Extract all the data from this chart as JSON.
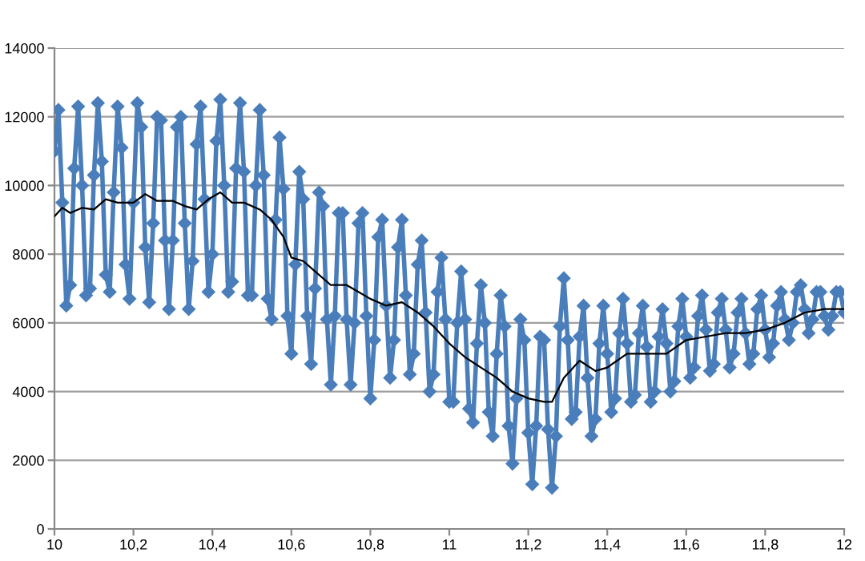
{
  "chart_data": {
    "type": "line",
    "xlim": [
      10,
      12
    ],
    "ylim": [
      0,
      14000
    ],
    "xticks": [
      {
        "value": 10,
        "label": "10"
      },
      {
        "value": 10.2,
        "label": "10,2"
      },
      {
        "value": 10.4,
        "label": "10,4"
      },
      {
        "value": 10.6,
        "label": "10,6"
      },
      {
        "value": 10.8,
        "label": "10,8"
      },
      {
        "value": 11,
        "label": "11"
      },
      {
        "value": 11.2,
        "label": "11,2"
      },
      {
        "value": 11.4,
        "label": "11,4"
      },
      {
        "value": 11.6,
        "label": "11,6"
      },
      {
        "value": 11.8,
        "label": "11,8"
      },
      {
        "value": 12,
        "label": "12"
      }
    ],
    "yticks": [
      0,
      2000,
      4000,
      6000,
      8000,
      10000,
      12000,
      14000
    ],
    "grid": "y",
    "series": [
      {
        "color": "#4a7ebb",
        "marker": "diamond",
        "x": [
          10.0,
          10.01,
          10.02,
          10.03,
          10.04,
          10.05,
          10.06,
          10.07,
          10.08,
          10.09,
          10.1,
          10.11,
          10.12,
          10.13,
          10.14,
          10.15,
          10.16,
          10.17,
          10.18,
          10.19,
          10.2,
          10.21,
          10.22,
          10.23,
          10.24,
          10.25,
          10.26,
          10.27,
          10.28,
          10.29,
          10.3,
          10.31,
          10.32,
          10.33,
          10.34,
          10.35,
          10.36,
          10.37,
          10.38,
          10.39,
          10.4,
          10.41,
          10.42,
          10.43,
          10.44,
          10.45,
          10.46,
          10.47,
          10.48,
          10.49,
          10.5,
          10.51,
          10.52,
          10.53,
          10.54,
          10.55,
          10.56,
          10.57,
          10.58,
          10.59,
          10.6,
          10.61,
          10.62,
          10.63,
          10.64,
          10.65,
          10.66,
          10.67,
          10.68,
          10.69,
          10.7,
          10.71,
          10.72,
          10.73,
          10.74,
          10.75,
          10.76,
          10.77,
          10.78,
          10.79,
          10.8,
          10.81,
          10.82,
          10.83,
          10.84,
          10.85,
          10.86,
          10.87,
          10.88,
          10.89,
          10.9,
          10.91,
          10.92,
          10.93,
          10.94,
          10.95,
          10.96,
          10.97,
          10.98,
          10.99,
          11.0,
          11.01,
          11.02,
          11.03,
          11.04,
          11.05,
          11.06,
          11.07,
          11.08,
          11.09,
          11.1,
          11.11,
          11.12,
          11.13,
          11.14,
          11.15,
          11.16,
          11.17,
          11.18,
          11.19,
          11.2,
          11.21,
          11.22,
          11.23,
          11.24,
          11.25,
          11.26,
          11.27,
          11.28,
          11.29,
          11.3,
          11.31,
          11.32,
          11.33,
          11.34,
          11.35,
          11.36,
          11.37,
          11.38,
          11.39,
          11.4,
          11.41,
          11.42,
          11.43,
          11.44,
          11.45,
          11.46,
          11.47,
          11.48,
          11.49,
          11.5,
          11.51,
          11.52,
          11.53,
          11.54,
          11.55,
          11.56,
          11.57,
          11.58,
          11.59,
          11.6,
          11.61,
          11.62,
          11.63,
          11.64,
          11.65,
          11.66,
          11.67,
          11.68,
          11.69,
          11.7,
          11.71,
          11.72,
          11.73,
          11.74,
          11.75,
          11.76,
          11.77,
          11.78,
          11.79,
          11.8,
          11.81,
          11.82,
          11.83,
          11.84,
          11.85,
          11.86,
          11.87,
          11.88,
          11.89,
          11.9,
          11.91,
          11.92,
          11.93,
          11.94,
          11.95,
          11.96,
          11.97,
          11.98,
          11.99,
          12.0
        ],
        "values": [
          11000,
          12200,
          9500,
          6500,
          7100,
          10500,
          12300,
          10000,
          6800,
          7000,
          10300,
          12400,
          10700,
          7400,
          6900,
          9800,
          12300,
          11100,
          7700,
          6700,
          9500,
          12400,
          11700,
          8200,
          6600,
          8900,
          12000,
          11900,
          8400,
          6400,
          8400,
          11700,
          12000,
          8900,
          6400,
          7800,
          11200,
          12300,
          9600,
          6900,
          8000,
          11300,
          12500,
          10000,
          6900,
          7200,
          10500,
          12400,
          10400,
          6800,
          6800,
          10000,
          12200,
          10300,
          6700,
          6100,
          9000,
          11400,
          9900,
          6200,
          5100,
          7700,
          10400,
          9600,
          6200,
          4800,
          7000,
          9800,
          9400,
          6100,
          4200,
          6200,
          9200,
          9200,
          6100,
          4200,
          6000,
          8900,
          9200,
          6200,
          3800,
          5500,
          8500,
          9000,
          6500,
          4400,
          5500,
          8200,
          9000,
          6800,
          4500,
          5100,
          7700,
          8400,
          6300,
          4000,
          4500,
          6900,
          7900,
          6100,
          3700,
          3700,
          6000,
          7500,
          6100,
          3500,
          3100,
          5400,
          7100,
          6000,
          3400,
          2700,
          5100,
          6800,
          5900,
          3000,
          1900,
          3800,
          6100,
          5500,
          2800,
          1300,
          3000,
          5600,
          5500,
          2900,
          1200,
          2700,
          5900,
          7300,
          5500,
          3200,
          3400,
          5600,
          6500,
          4400,
          2700,
          3200,
          5400,
          6500,
          5100,
          3400,
          3800,
          5700,
          6700,
          5400,
          3700,
          3900,
          5700,
          6500,
          5300,
          3700,
          4000,
          5600,
          6400,
          5400,
          4000,
          4300,
          5900,
          6700,
          5600,
          4400,
          4700,
          6200,
          6800,
          5800,
          4600,
          4800,
          6300,
          6700,
          5800,
          4700,
          5100,
          6300,
          6700,
          5700,
          4800,
          5100,
          6400,
          6800,
          5800,
          5000,
          5400,
          6500,
          6900,
          6100,
          5500,
          6000,
          6900,
          7100,
          6400,
          5700,
          6100,
          6900,
          6900,
          6200,
          5800,
          6200,
          6900,
          6900,
          6300
        ]
      },
      {
        "color": "#000000",
        "marker": "none",
        "x": [
          10.0,
          10.02,
          10.04,
          10.07,
          10.1,
          10.13,
          10.16,
          10.2,
          10.23,
          10.26,
          10.3,
          10.33,
          10.36,
          10.39,
          10.42,
          10.45,
          10.48,
          10.52,
          10.55,
          10.58,
          10.6,
          10.63,
          10.66,
          10.7,
          10.74,
          10.77,
          10.8,
          10.84,
          10.88,
          10.92,
          10.96,
          11.0,
          11.04,
          11.08,
          11.12,
          11.16,
          11.2,
          11.24,
          11.26,
          11.29,
          11.33,
          11.37,
          11.4,
          11.45,
          11.5,
          11.55,
          11.6,
          11.65,
          11.7,
          11.75,
          11.8,
          11.85,
          11.9,
          11.95,
          12.0
        ],
        "values": [
          9100,
          9350,
          9200,
          9350,
          9300,
          9600,
          9500,
          9500,
          9750,
          9550,
          9550,
          9400,
          9300,
          9600,
          9800,
          9500,
          9500,
          9300,
          9000,
          8500,
          7900,
          7800,
          7500,
          7100,
          7100,
          6900,
          6700,
          6500,
          6600,
          6300,
          5900,
          5400,
          5000,
          4700,
          4400,
          4000,
          3800,
          3700,
          3700,
          4400,
          4900,
          4600,
          4700,
          5100,
          5100,
          5100,
          5500,
          5600,
          5700,
          5700,
          5800,
          6000,
          6300,
          6400,
          6400
        ]
      }
    ]
  }
}
